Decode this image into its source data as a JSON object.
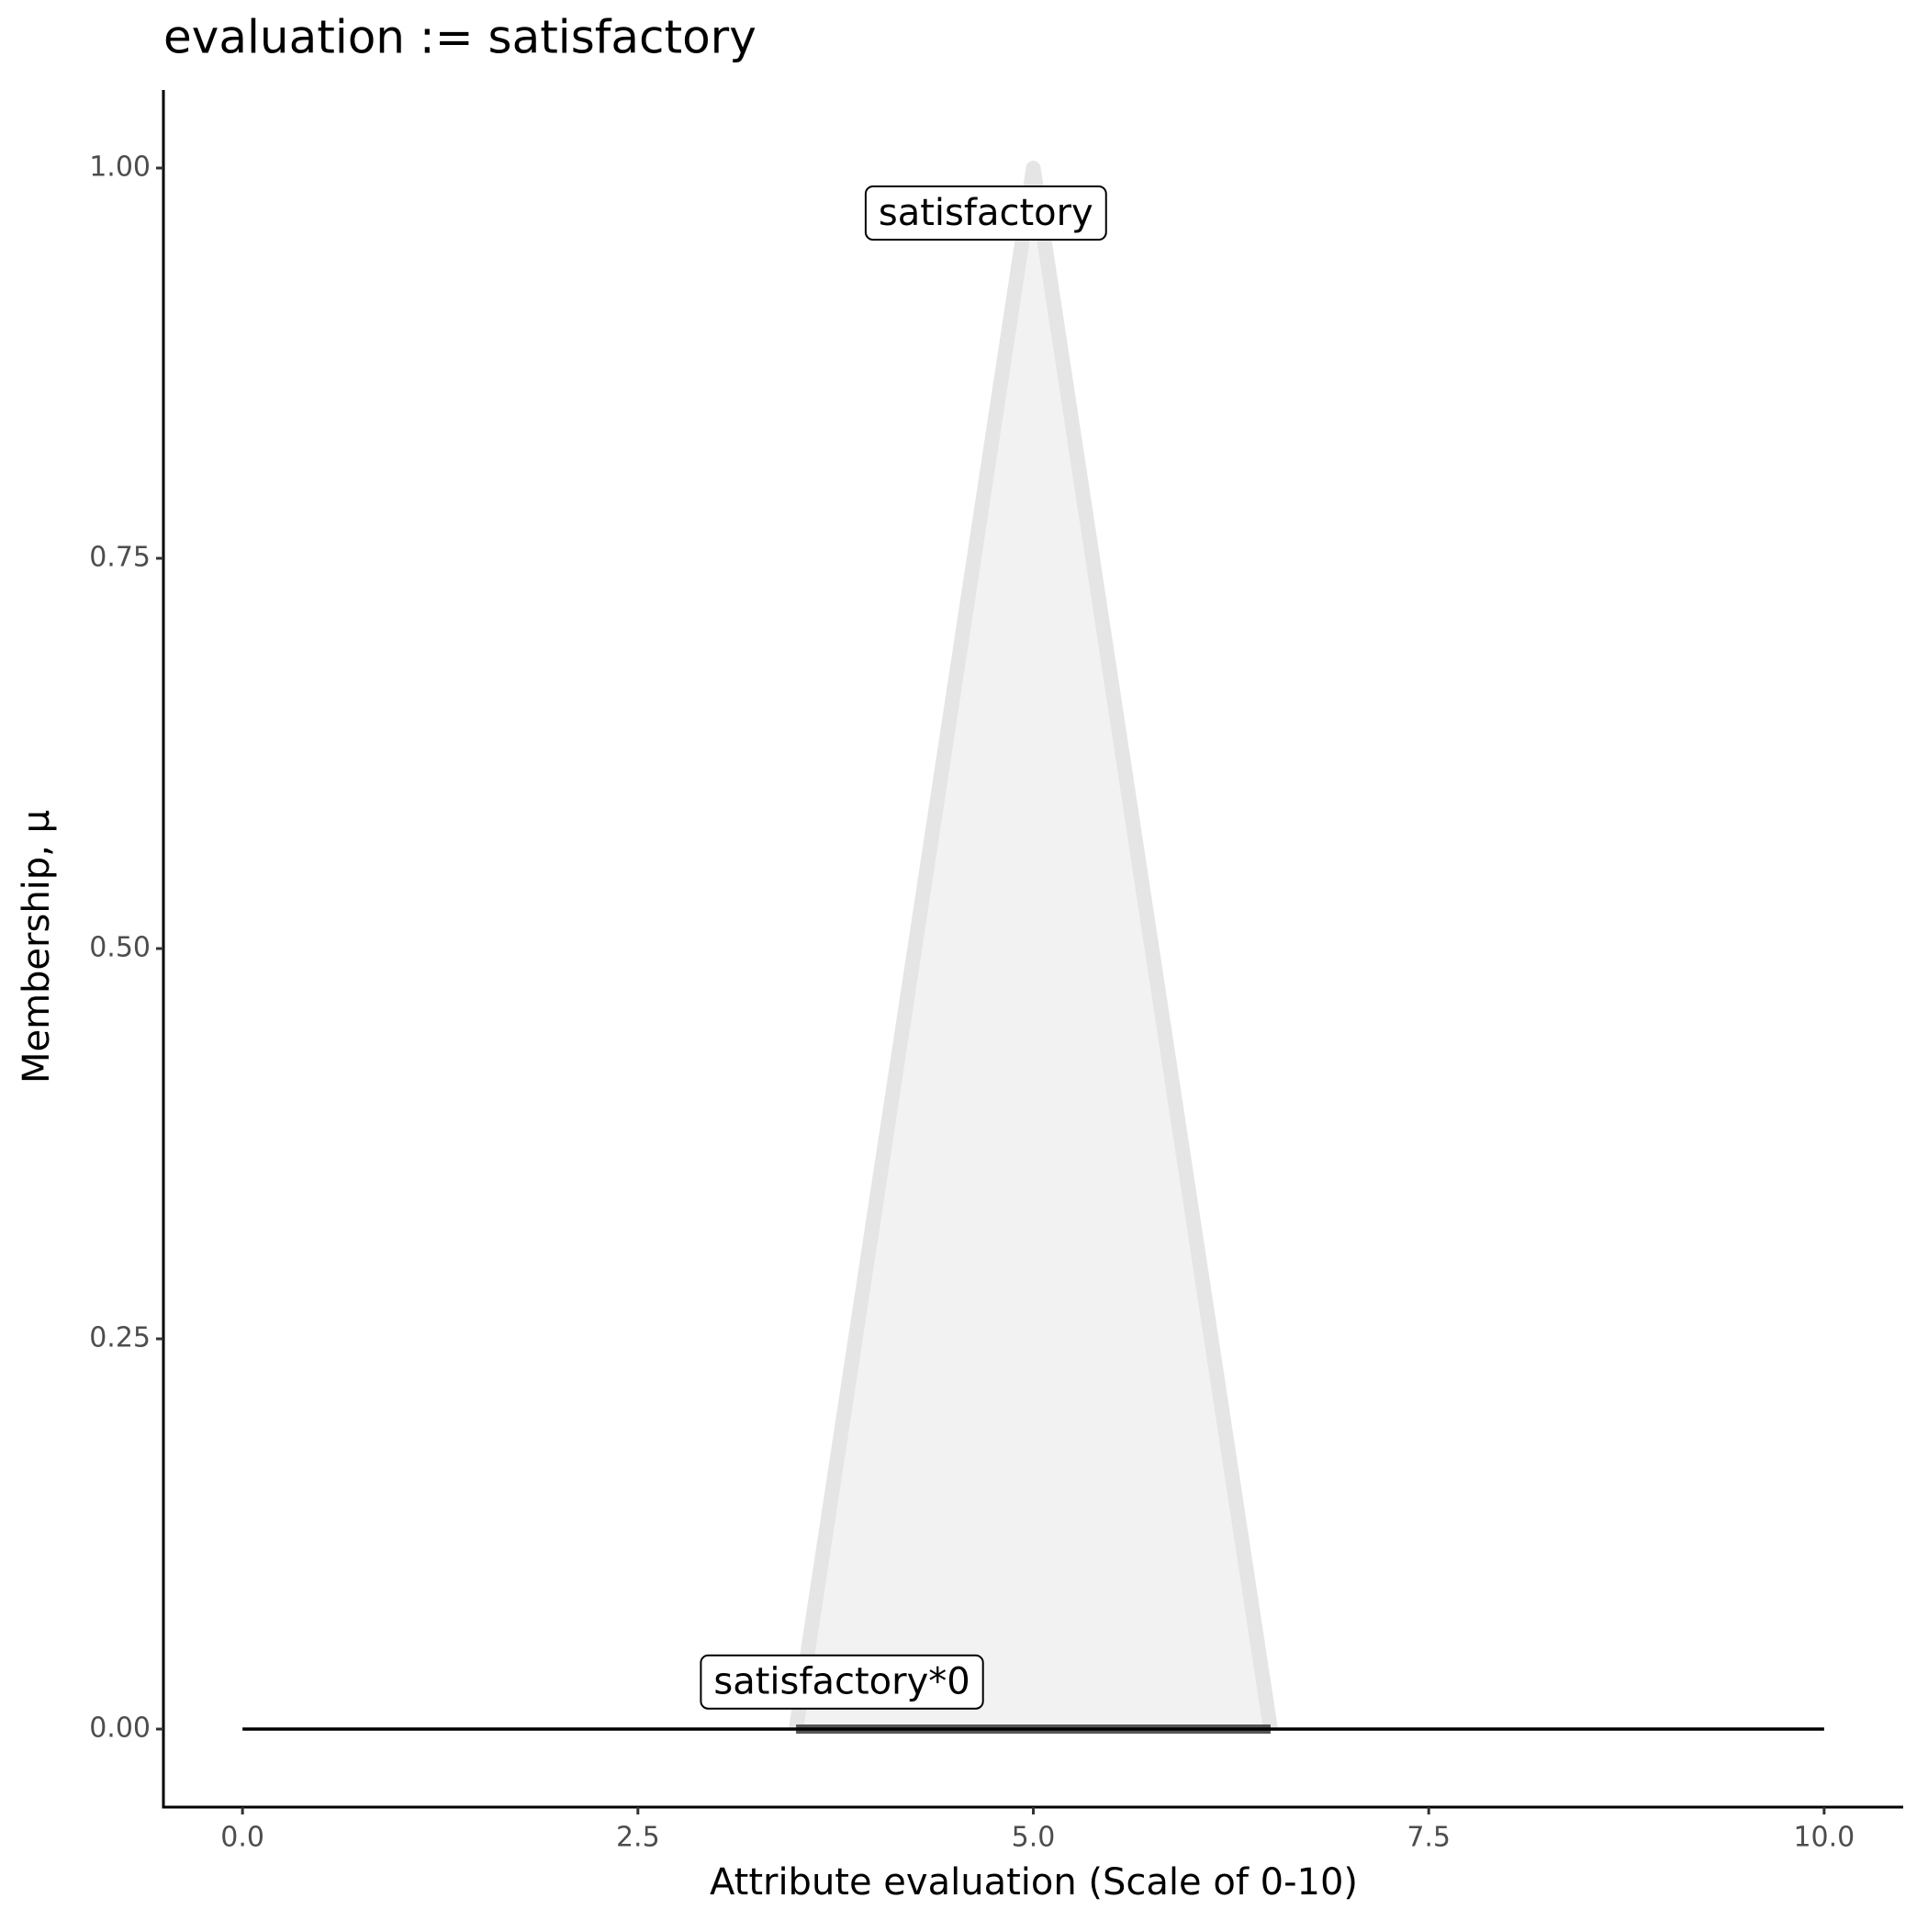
{
  "chart_data": {
    "type": "line",
    "title": "evaluation := satisfactory",
    "x_label": "Attribute evaluation (Scale of 0-10)",
    "y_label": "Membership, μ",
    "xlim": [
      -0.5,
      10.5
    ],
    "ylim": [
      -0.05,
      1.05
    ],
    "xticks": [
      {
        "value": 0,
        "label": "0.0"
      },
      2.5,
      {
        "value": 5,
        "label": "5.0"
      },
      7.5,
      {
        "value": 10,
        "label": "10.0"
      }
    ],
    "yticks": [
      {
        "value": 0,
        "label": "0.00"
      },
      {
        "value": 0.25,
        "label": "0.25"
      },
      {
        "value": 0.5,
        "label": "0.50"
      },
      {
        "value": 0.75,
        "label": "0.75"
      },
      {
        "value": 1,
        "label": "1.00"
      }
    ],
    "series": [
      {
        "name": "satisfactory",
        "x": [
          3.5,
          5,
          6.5
        ],
        "values": [
          0,
          1,
          0
        ],
        "color": "#e5e5e5",
        "fill": "#f2f2f2",
        "label_x": 4.7,
        "label_y": 0.97
      },
      {
        "name": "satisfactory*0",
        "x": [
          3.5,
          5,
          6.5
        ],
        "values": [
          0,
          0,
          0
        ],
        "color": "#555555",
        "fill": "#555555",
        "label_x": 3.79,
        "label_y": 0.029
      }
    ],
    "baseline": {
      "x": [
        0,
        10
      ],
      "values": [
        0,
        0
      ],
      "color": "#000000"
    }
  }
}
